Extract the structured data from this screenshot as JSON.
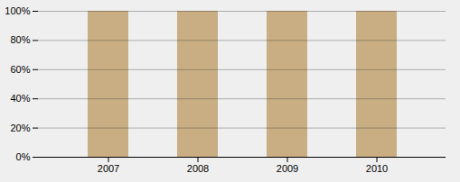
{
  "chart_data": {
    "type": "bar",
    "categories": [
      "2007",
      "2008",
      "2009",
      "2010"
    ],
    "values": [
      100,
      100,
      100,
      100
    ],
    "color": "#C8AE82",
    "ylim": [
      0,
      100
    ],
    "yticks": [
      {
        "value": 0,
        "label": "0%"
      },
      {
        "value": 20,
        "label": "20%"
      },
      {
        "value": 40,
        "label": "40%"
      },
      {
        "value": 60,
        "label": "60%"
      },
      {
        "value": 80,
        "label": "80%"
      },
      {
        "value": 100,
        "label": "100%"
      }
    ],
    "grid": true
  }
}
